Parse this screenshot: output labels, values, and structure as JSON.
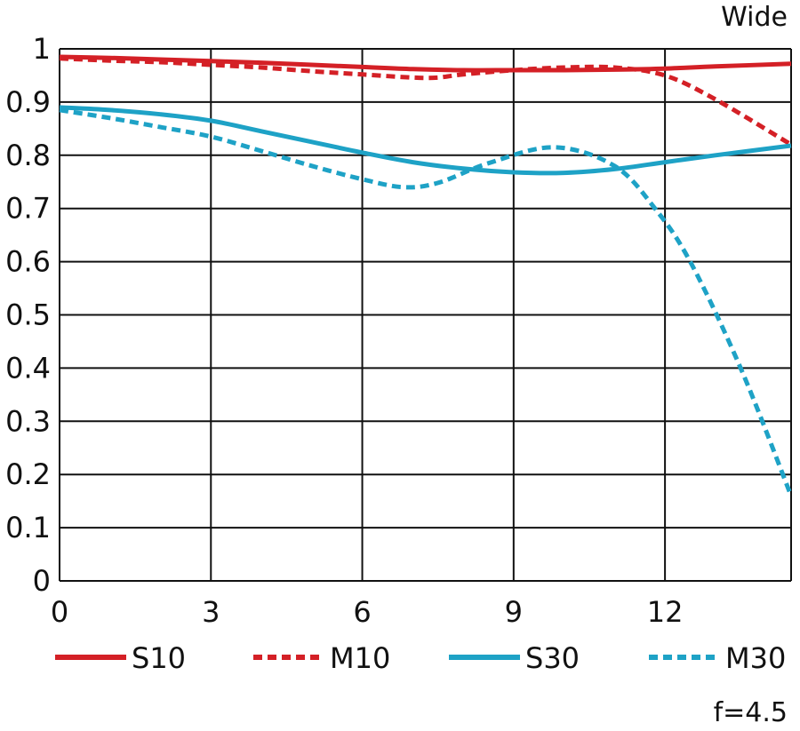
{
  "chart_data": {
    "type": "line",
    "title": "Wide",
    "footnote": "f=4.5",
    "xlabel": "",
    "ylabel": "",
    "xlim": [
      0,
      14.5
    ],
    "ylim": [
      0,
      1
    ],
    "x_ticks": [
      "0",
      "3",
      "6",
      "9",
      "12"
    ],
    "x_tick_values": [
      0,
      3,
      6,
      9,
      12
    ],
    "y_ticks": [
      "0",
      "0.1",
      "0.2",
      "0.3",
      "0.4",
      "0.5",
      "0.6",
      "0.7",
      "0.8",
      "0.9",
      "1"
    ],
    "y_tick_values": [
      0,
      0.1,
      0.2,
      0.3,
      0.4,
      0.5,
      0.6,
      0.7,
      0.8,
      0.9,
      1
    ],
    "grid": true,
    "legend_position": "bottom",
    "series": [
      {
        "name": "S10",
        "color": "#d42026",
        "dash": "solid",
        "x": [
          0,
          1,
          2,
          3,
          4,
          5,
          6,
          7,
          8,
          9,
          10,
          11,
          12,
          13,
          14.5
        ],
        "y": [
          0.985,
          0.983,
          0.98,
          0.977,
          0.974,
          0.97,
          0.966,
          0.962,
          0.96,
          0.96,
          0.96,
          0.961,
          0.963,
          0.967,
          0.972
        ]
      },
      {
        "name": "M10",
        "color": "#d42026",
        "dash": "dashed",
        "x": [
          0,
          1,
          2,
          3,
          4,
          5,
          6,
          7,
          7.5,
          8,
          9,
          10,
          11,
          12,
          13,
          14.5
        ],
        "y": [
          0.982,
          0.978,
          0.975,
          0.97,
          0.965,
          0.958,
          0.952,
          0.946,
          0.946,
          0.952,
          0.96,
          0.965,
          0.965,
          0.95,
          0.905,
          0.82
        ]
      },
      {
        "name": "S30",
        "color": "#1ea2c6",
        "dash": "solid",
        "x": [
          0,
          1,
          2,
          3,
          4,
          5,
          6,
          7,
          8,
          9,
          10,
          11,
          12,
          13,
          14.5
        ],
        "y": [
          0.89,
          0.885,
          0.877,
          0.865,
          0.845,
          0.825,
          0.805,
          0.787,
          0.775,
          0.768,
          0.767,
          0.774,
          0.787,
          0.8,
          0.818
        ]
      },
      {
        "name": "M30",
        "color": "#1ea2c6",
        "dash": "dashed",
        "x": [
          0,
          1,
          2,
          3,
          4,
          5,
          6,
          6.8,
          7.5,
          8.5,
          9.8,
          11,
          11.8,
          12.5,
          13.5,
          14.5
        ],
        "y": [
          0.885,
          0.87,
          0.853,
          0.835,
          0.808,
          0.78,
          0.755,
          0.74,
          0.748,
          0.785,
          0.815,
          0.78,
          0.7,
          0.6,
          0.4,
          0.16
        ]
      }
    ]
  }
}
